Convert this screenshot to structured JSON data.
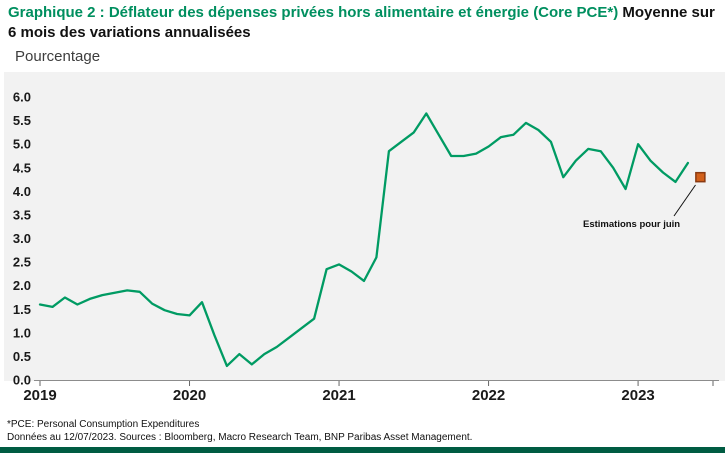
{
  "header": {
    "title_green": "Graphique 2 : Déflateur des dépenses privées hors alimentaire et énergie (Core PCE*)",
    "title_black": " Moyenne sur 6 mois des variations annualisées",
    "unit_label": "Pourcentage"
  },
  "chart_data": {
    "type": "line",
    "title": "Déflateur des dépenses privées hors alimentaire et énergie (Core PCE) — Moyenne sur 6 mois des variations annualisées",
    "ylabel": "Pourcentage",
    "ylim": [
      0.0,
      6.0
    ],
    "y_tick_step": 0.5,
    "y_tick_labels": [
      "0.0",
      "0.5",
      "1.0",
      "1.5",
      "2.0",
      "2.5",
      "3.0",
      "3.5",
      "4.0",
      "4.5",
      "5.0",
      "5.5",
      "6.0"
    ],
    "x_tick_labels": [
      "2019",
      "2020",
      "2021",
      "2022",
      "2023"
    ],
    "grid": false,
    "legend": "none",
    "frequency": "monthly",
    "x_start": "2019-01",
    "series": [
      {
        "name": "Core PCE, moyenne sur 6 mois des variations annualisées (%)",
        "values": [
          1.6,
          1.55,
          1.75,
          1.6,
          1.72,
          1.8,
          1.85,
          1.9,
          1.87,
          1.62,
          1.48,
          1.4,
          1.37,
          1.65,
          0.95,
          0.3,
          0.55,
          0.33,
          0.55,
          0.7,
          0.9,
          1.1,
          1.3,
          2.35,
          2.45,
          2.3,
          2.1,
          2.6,
          4.85,
          5.05,
          5.25,
          5.65,
          5.2,
          4.75,
          4.75,
          4.8,
          4.95,
          5.15,
          5.2,
          5.45,
          5.3,
          5.05,
          4.3,
          4.65,
          4.9,
          4.85,
          4.5,
          4.05,
          5.0,
          4.65,
          4.4,
          4.2,
          4.6
        ]
      }
    ],
    "estimate_point": {
      "label": "Estimations pour juin",
      "x": "2023-06",
      "value": 4.3
    }
  },
  "footer": {
    "note1": "*PCE: Personal Consumption Expenditures",
    "note2": "Données au 12/07/2023. Sources : Bloomberg, Macro Research Team, BNP Paribas Asset Management."
  },
  "colors": {
    "title_green": "#008f5f",
    "line_green": "#009b63",
    "marker_fill": "#d2601a",
    "marker_stroke": "#8a3a12",
    "plot_background": "#f2f2f2",
    "axis": "#8c8c8c",
    "tick": "#666666",
    "text": "#1a1a1a",
    "accent_bar": "#005c42"
  }
}
